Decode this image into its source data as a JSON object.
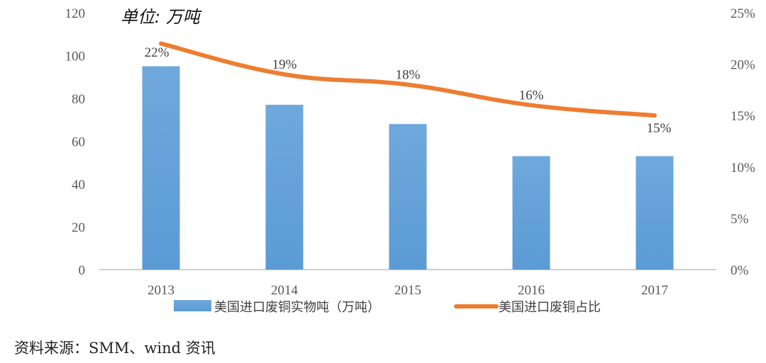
{
  "unit_label": "单位: 万吨",
  "source_note": "资料来源：SMM、wind 资讯",
  "colors": {
    "bar": "#5b9bd5",
    "line": "#ed7d31",
    "axis": "#bfbfbf"
  },
  "chart_data": {
    "type": "bar+line",
    "categories": [
      "2013",
      "2014",
      "2015",
      "2016",
      "2017"
    ],
    "series": [
      {
        "name": "美国进口废铜实物吨（万吨）",
        "type": "bar",
        "axis": "left",
        "values": [
          95,
          77,
          68,
          53,
          53
        ]
      },
      {
        "name": "美国进口废铜占比",
        "type": "line",
        "axis": "right",
        "values": [
          22,
          19,
          18,
          16,
          15
        ],
        "labels": [
          "22%",
          "19%",
          "18%",
          "16%",
          "15%"
        ]
      }
    ],
    "y_left": {
      "min": 0,
      "max": 120,
      "ticks": [
        "0",
        "20",
        "40",
        "60",
        "80",
        "100",
        "120"
      ]
    },
    "y_right": {
      "min": 0,
      "max": 25,
      "ticks": [
        "0%",
        "5%",
        "10%",
        "15%",
        "20%",
        "25%"
      ]
    },
    "legend_position": "bottom"
  }
}
